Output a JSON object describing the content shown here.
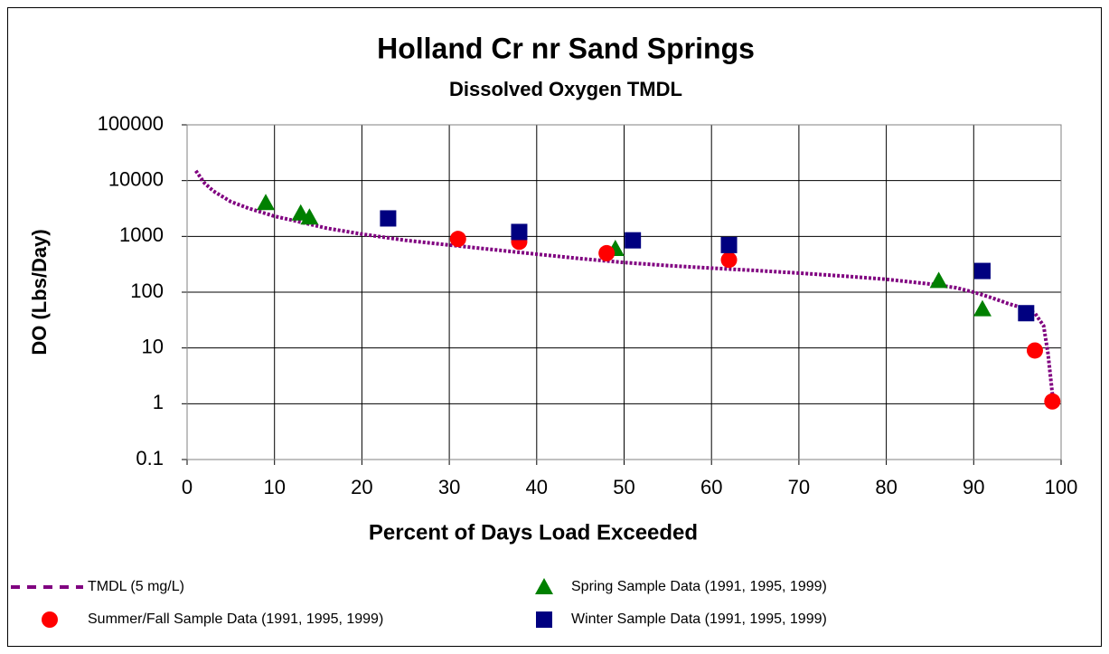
{
  "chart_data": {
    "type": "line",
    "title": "Holland Cr nr Sand Springs",
    "subtitle": "Dissolved Oxygen TMDL",
    "x_label": "Percent of Days Load Exceeded",
    "y_label": "DO (Lbs/Day)",
    "xlim": [
      0,
      100
    ],
    "xticks": [
      0,
      10,
      20,
      30,
      40,
      50,
      60,
      70,
      80,
      90,
      100
    ],
    "ylim": [
      0.1,
      100000
    ],
    "yticks": [
      0.1,
      1,
      10,
      100,
      1000,
      10000,
      100000
    ],
    "y_scale": "log",
    "grid": true,
    "legend_position": "bottom",
    "series": [
      {
        "name": "TMDL (5 mg/L)",
        "type": "line",
        "color": "#800080",
        "x": [
          1,
          2,
          3,
          5,
          7,
          10,
          13,
          16,
          20,
          25,
          30,
          35,
          40,
          45,
          50,
          55,
          60,
          65,
          70,
          75,
          80,
          85,
          88,
          90,
          92,
          94,
          96,
          97,
          98,
          98.5,
          99
        ],
        "values": [
          15000,
          9000,
          6500,
          4200,
          3200,
          2300,
          1800,
          1400,
          1100,
          850,
          700,
          580,
          480,
          400,
          340,
          300,
          270,
          245,
          220,
          195,
          170,
          140,
          120,
          100,
          80,
          62,
          50,
          42,
          25,
          8,
          1.5
        ]
      },
      {
        "name": "Spring Sample Data (1991, 1995, 1999)",
        "type": "scatter",
        "marker": "triangle",
        "color": "#008000",
        "x": [
          9,
          13,
          14,
          49,
          86,
          91
        ],
        "values": [
          4000,
          2600,
          2200,
          600,
          160,
          50
        ]
      },
      {
        "name": "Summer/Fall Sample Data (1991, 1995, 1999)",
        "type": "scatter",
        "marker": "circle",
        "color": "#ff0000",
        "x": [
          31,
          38,
          48,
          62,
          97,
          99
        ],
        "values": [
          900,
          800,
          500,
          380,
          9,
          1.1
        ]
      },
      {
        "name": "Winter Sample Data (1991, 1995, 1999)",
        "type": "scatter",
        "marker": "square",
        "color": "#000080",
        "x": [
          23,
          38,
          51,
          62,
          91,
          96
        ],
        "values": [
          2100,
          1200,
          850,
          700,
          240,
          42
        ]
      }
    ]
  }
}
